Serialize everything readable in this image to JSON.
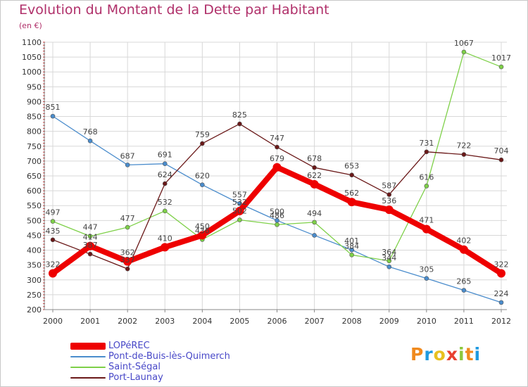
{
  "title": "Evolution du Montant de la Dette par Habitant",
  "subtitle": "(en €)",
  "logo": {
    "text": "Proxiti",
    "letter_colors": [
      "#f08a1e",
      "#1e9ae0",
      "#e8c020",
      "#e84030",
      "#8cc83c",
      "#f08a1e",
      "#1e9ae0"
    ]
  },
  "chart_data": {
    "type": "line",
    "x": [
      "2000",
      "2001",
      "2002",
      "2003",
      "2004",
      "2005",
      "2006",
      "2007",
      "2008",
      "2009",
      "2010",
      "2011",
      "2012"
    ],
    "ylim": [
      200,
      1100
    ],
    "yticks": [
      "200",
      "250",
      "300",
      "350",
      "400",
      "450",
      "500",
      "550",
      "600",
      "650",
      "700",
      "750",
      "800",
      "850",
      "900",
      "950",
      "1000",
      "1050",
      "1100"
    ],
    "grid": true,
    "legend_position": "bottom-left",
    "series": [
      {
        "name": "Pont-de-Buis-lès-Quimerch",
        "color": "#4a8ccc",
        "values": [
          851,
          768,
          687,
          691,
          620,
          557,
          500,
          450,
          401,
          344,
          305,
          265,
          224
        ],
        "labels": [
          "851",
          "768",
          "687",
          "691",
          "620",
          "557",
          "500",
          "",
          "401",
          "344",
          "305",
          "265",
          "224"
        ]
      },
      {
        "name": "Saint-Ségal",
        "color": "#7ed048",
        "values": [
          497,
          447,
          477,
          532,
          436,
          502,
          486,
          494,
          384,
          364,
          616,
          1067,
          1017
        ],
        "labels": [
          "497",
          "447",
          "477",
          "532",
          "436",
          "502",
          "486",
          "494",
          "384",
          "364",
          "616",
          "1067",
          "1017"
        ]
      },
      {
        "name": "Port-Launay",
        "color": "#6a1818",
        "values": [
          435,
          387,
          337,
          624,
          759,
          825,
          747,
          678,
          653,
          587,
          731,
          722,
          704
        ],
        "labels": [
          "435",
          "387",
          "337",
          "624",
          "759",
          "825",
          "747",
          "678",
          "653",
          "587",
          "731",
          "722",
          "704"
        ]
      },
      {
        "name": "LOPéREC",
        "color": "#ee0000",
        "values": [
          322,
          414,
          362,
          410,
          450,
          532,
          679,
          622,
          562,
          536,
          471,
          402,
          322
        ],
        "labels": [
          "322",
          "414",
          "362",
          "410",
          "450",
          "532",
          "679",
          "622",
          "562",
          "536",
          "471",
          "402",
          "322"
        ]
      }
    ],
    "legend": [
      {
        "name": "LOPéREC",
        "color": "#ee0000",
        "thickness": 10
      },
      {
        "name": "Pont-de-Buis-lès-Quimerch",
        "color": "#4a8ccc",
        "thickness": 2
      },
      {
        "name": "Saint-Ségal",
        "color": "#7ed048",
        "thickness": 2
      },
      {
        "name": "Port-Launay",
        "color": "#6a1818",
        "thickness": 2
      }
    ]
  }
}
